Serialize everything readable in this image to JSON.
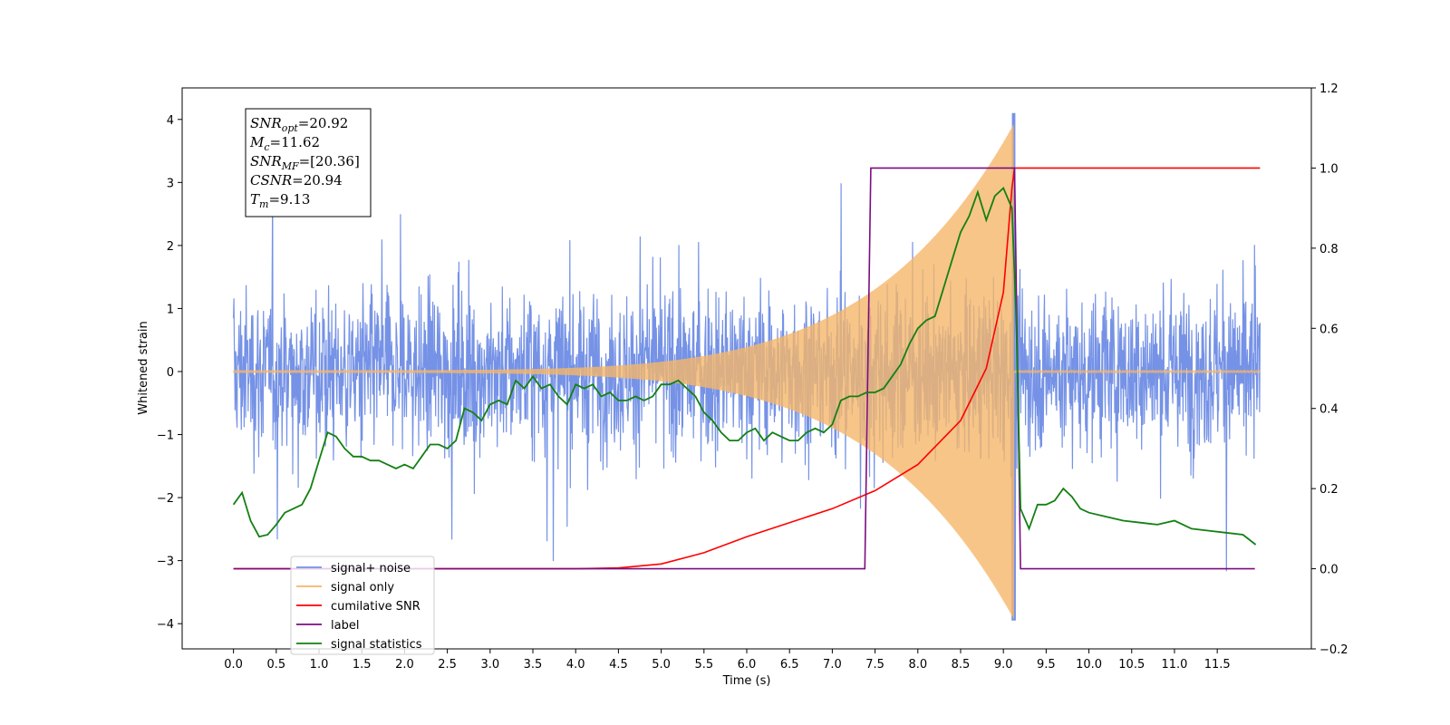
{
  "chart_data": {
    "type": "line",
    "xlabel": "Time (s)",
    "ylabel": "Whitened strain",
    "xlim": [
      -0.6,
      12.6
    ],
    "ylim": [
      -4.4,
      4.5
    ],
    "ylim_right": [
      -0.2,
      1.2
    ],
    "x_ticks": [
      "0.0",
      "0.5",
      "1.0",
      "1.5",
      "2.0",
      "2.5",
      "3.0",
      "3.5",
      "4.0",
      "4.5",
      "5.0",
      "5.5",
      "6.0",
      "6.5",
      "7.0",
      "7.5",
      "8.0",
      "8.5",
      "9.0",
      "9.5",
      "10.0",
      "10.5",
      "11.0",
      "11.5"
    ],
    "y_ticks": [
      "4",
      "3",
      "2",
      "1",
      "0",
      "−1",
      "−2",
      "−3",
      "−4"
    ],
    "y_ticks_right": [
      "1.2",
      "1.0",
      "0.8",
      "0.6",
      "0.4",
      "0.2",
      "0.0",
      "−0.2"
    ],
    "annotation": [
      {
        "base": "SNR",
        "sub": "opt",
        "value": "=20.92"
      },
      {
        "base": "M",
        "sub": "c",
        "value": "=11.62"
      },
      {
        "base": "SNR",
        "sub": "MF",
        "value": "=[20.36]"
      },
      {
        "base": "CSNR",
        "sub": "",
        "value": "=20.94"
      },
      {
        "base": "T",
        "sub": "m",
        "value": "=9.13"
      }
    ],
    "legend_position": "lower-left",
    "series": [
      {
        "name": "signal+ noise",
        "axis": "left",
        "color": "#7592e6",
        "description_values": {
          "duration_s": [
            0,
            12
          ],
          "noise_amplitude_band": [
            -2.5,
            2.5
          ],
          "peak_max": 4.1,
          "peak_min": -3.95
        }
      },
      {
        "name": "signal only",
        "axis": "left",
        "color": "#f5b66a",
        "chirp": {
          "start_s": 0,
          "merger_s": 9.12,
          "end_s": 12,
          "peak_amplitude": 3.9
        }
      },
      {
        "name": "cumilative SNR",
        "axis": "right",
        "color": "#ff0000",
        "x": [
          0,
          4,
          4.5,
          5,
          5.5,
          6,
          6.5,
          7,
          7.5,
          8,
          8.5,
          8.8,
          9.0,
          9.1,
          9.13,
          12
        ],
        "y": [
          0,
          0,
          0.002,
          0.012,
          0.04,
          0.08,
          0.115,
          0.15,
          0.195,
          0.26,
          0.37,
          0.5,
          0.69,
          0.95,
          1.0,
          1.0
        ]
      },
      {
        "name": "label",
        "axis": "right",
        "color": "#7b0d82",
        "x": [
          0,
          7.38,
          7.45,
          9.13,
          9.2,
          11.94
        ],
        "y": [
          0,
          0,
          1,
          1,
          0,
          0
        ]
      },
      {
        "name": "signal statistics",
        "axis": "right",
        "color": "#138013",
        "x": [
          0,
          0.1,
          0.2,
          0.3,
          0.4,
          0.5,
          0.6,
          0.7,
          0.8,
          0.9,
          1.0,
          1.1,
          1.2,
          1.3,
          1.4,
          1.5,
          1.6,
          1.7,
          1.8,
          1.9,
          2.0,
          2.1,
          2.2,
          2.3,
          2.4,
          2.5,
          2.6,
          2.7,
          2.8,
          2.9,
          3.0,
          3.1,
          3.2,
          3.3,
          3.4,
          3.5,
          3.6,
          3.7,
          3.8,
          3.9,
          4.0,
          4.1,
          4.2,
          4.3,
          4.4,
          4.5,
          4.6,
          4.7,
          4.8,
          4.9,
          5.0,
          5.1,
          5.2,
          5.3,
          5.4,
          5.5,
          5.6,
          5.7,
          5.8,
          5.9,
          6.0,
          6.1,
          6.2,
          6.3,
          6.4,
          6.5,
          6.6,
          6.7,
          6.8,
          6.9,
          7.0,
          7.1,
          7.2,
          7.3,
          7.4,
          7.5,
          7.6,
          7.7,
          7.8,
          7.9,
          8.0,
          8.1,
          8.2,
          8.3,
          8.4,
          8.5,
          8.6,
          8.7,
          8.8,
          8.9,
          9.0,
          9.1,
          9.15,
          9.2,
          9.3,
          9.4,
          9.5,
          9.6,
          9.7,
          9.8,
          9.9,
          10.0,
          10.2,
          10.4,
          10.6,
          10.8,
          11.0,
          11.2,
          11.4,
          11.6,
          11.8,
          11.95
        ],
        "y": [
          0.16,
          0.19,
          0.12,
          0.08,
          0.085,
          0.11,
          0.14,
          0.15,
          0.16,
          0.2,
          0.27,
          0.34,
          0.33,
          0.3,
          0.28,
          0.28,
          0.27,
          0.27,
          0.26,
          0.25,
          0.26,
          0.25,
          0.28,
          0.31,
          0.31,
          0.3,
          0.32,
          0.4,
          0.39,
          0.37,
          0.41,
          0.42,
          0.41,
          0.47,
          0.45,
          0.48,
          0.45,
          0.46,
          0.43,
          0.41,
          0.46,
          0.45,
          0.46,
          0.43,
          0.44,
          0.42,
          0.42,
          0.43,
          0.42,
          0.43,
          0.46,
          0.46,
          0.47,
          0.45,
          0.43,
          0.39,
          0.37,
          0.34,
          0.32,
          0.32,
          0.34,
          0.35,
          0.32,
          0.34,
          0.33,
          0.32,
          0.32,
          0.34,
          0.35,
          0.34,
          0.36,
          0.42,
          0.43,
          0.43,
          0.44,
          0.44,
          0.45,
          0.48,
          0.51,
          0.56,
          0.6,
          0.62,
          0.63,
          0.7,
          0.77,
          0.84,
          0.88,
          0.94,
          0.87,
          0.93,
          0.95,
          0.9,
          0.63,
          0.15,
          0.1,
          0.16,
          0.16,
          0.17,
          0.2,
          0.18,
          0.15,
          0.14,
          0.13,
          0.12,
          0.115,
          0.11,
          0.12,
          0.1,
          0.095,
          0.09,
          0.085,
          0.06
        ]
      }
    ]
  }
}
